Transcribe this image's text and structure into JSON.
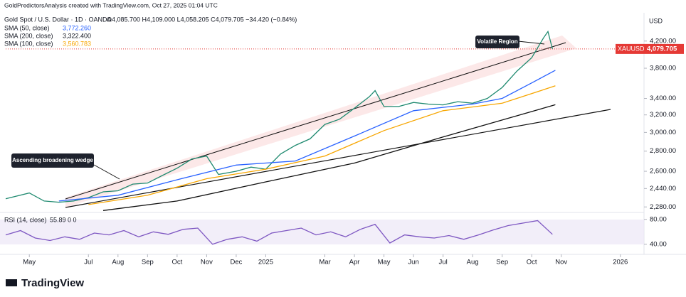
{
  "header": {
    "credit": "GoldPredictorsAnalysis created with TradingView.com, Oct 27, 2025 01:04 UTC",
    "symbol": "Gold Spot / U.S. Dollar · 1D · OANDA",
    "ohlc": "O4,085.700  H4,109.000  L4,058.205  C4,079.705  −34.420 (−0.84%)",
    "legend": [
      {
        "name": "SMA (50, close)",
        "value": "3,772.260"
      },
      {
        "name": "SMA (200, close)",
        "value": "3,322.400"
      },
      {
        "name": "SMA (100, close)",
        "value": "3,560.783"
      }
    ],
    "currency": "USD",
    "ticker": "XAUUSD",
    "logo": "TradingView"
  },
  "chart_data": [
    {
      "type": "line",
      "log_scale": true,
      "grid": false,
      "xlim": [
        -0.8,
        20.8
      ],
      "ylim": [
        2240,
        4400
      ],
      "xticks": [
        {
          "value": 0,
          "label": "May"
        },
        {
          "value": 2,
          "label": "Jul"
        },
        {
          "value": 3,
          "label": "Aug"
        },
        {
          "value": 4,
          "label": "Sep"
        },
        {
          "value": 5,
          "label": "Oct"
        },
        {
          "value": 6,
          "label": "Nov"
        },
        {
          "value": 7,
          "label": "Dec"
        },
        {
          "value": 8,
          "label": "2025"
        },
        {
          "value": 10,
          "label": "Mar"
        },
        {
          "value": 11,
          "label": "Apr"
        },
        {
          "value": 12,
          "label": "May"
        },
        {
          "value": 13,
          "label": "Jun"
        },
        {
          "value": 14,
          "label": "Jul"
        },
        {
          "value": 15,
          "label": "Aug"
        },
        {
          "value": 16,
          "label": "Sep"
        },
        {
          "value": 17,
          "label": "Oct"
        },
        {
          "value": 18,
          "label": "Nov"
        },
        {
          "value": 20,
          "label": "2026"
        }
      ],
      "yticks": [
        {
          "value": 2280,
          "label": "2,280.00"
        },
        {
          "value": 2440,
          "label": "2,440.00"
        },
        {
          "value": 2600,
          "label": "2,600.00"
        },
        {
          "value": 2800,
          "label": "2,800.00"
        },
        {
          "value": 3000,
          "label": "3,000.00"
        },
        {
          "value": 3200,
          "label": "3,200.00"
        },
        {
          "value": 3400,
          "label": "3,400.00"
        },
        {
          "value": 3800,
          "label": "3,800.00"
        },
        {
          "value": 4200,
          "label": "4,200.00"
        }
      ],
      "last_price": 4079.705,
      "last_price_label": "4,079.705",
      "annotations": [
        "Volatile Region",
        "Ascending broadening wedge"
      ],
      "series": [
        {
          "name": "Close",
          "color": "#1f8a70",
          "x": [
            -0.8,
            0,
            0.5,
            1,
            1.5,
            2,
            2.5,
            3,
            3.5,
            4,
            4.5,
            5,
            5.5,
            6,
            6.4,
            7,
            7.5,
            8,
            8.5,
            9,
            9.5,
            10,
            10.5,
            11,
            11.5,
            11.7,
            12,
            12.5,
            13,
            13.5,
            14,
            14.5,
            15,
            15.5,
            16,
            16.5,
            17,
            17.4,
            17.55,
            17.7
          ],
          "values": [
            2350,
            2400,
            2330,
            2320,
            2330,
            2360,
            2410,
            2420,
            2480,
            2490,
            2560,
            2630,
            2720,
            2750,
            2570,
            2600,
            2640,
            2620,
            2770,
            2860,
            2930,
            3090,
            3150,
            3280,
            3420,
            3500,
            3300,
            3300,
            3350,
            3330,
            3320,
            3360,
            3340,
            3400,
            3540,
            3760,
            3950,
            4250,
            4350,
            4080
          ]
        },
        {
          "name": "SMA (50, close)",
          "color": "#2962ff",
          "x": [
            1,
            3,
            5,
            7,
            9,
            11,
            13,
            15,
            16,
            17,
            17.8
          ],
          "values": [
            2330,
            2380,
            2520,
            2660,
            2700,
            2960,
            3250,
            3330,
            3400,
            3600,
            3772
          ]
        },
        {
          "name": "SMA (100, close)",
          "color": "#f7a600",
          "x": [
            2,
            4,
            6,
            8,
            10,
            12,
            14,
            16,
            17.8
          ],
          "values": [
            2300,
            2380,
            2530,
            2620,
            2750,
            3020,
            3250,
            3340,
            3561
          ]
        },
        {
          "name": "SMA (200, close)",
          "color": "#111111",
          "x": [
            2.5,
            5,
            8,
            11,
            14,
            16,
            17.8
          ],
          "values": [
            2250,
            2330,
            2500,
            2680,
            2950,
            3140,
            3322
          ]
        }
      ]
    },
    {
      "type": "line",
      "title": "RSI (14, close)",
      "title_values": "55.89  0  0",
      "xlim": [
        -0.8,
        20.8
      ],
      "ylim": [
        26,
        90
      ],
      "yticks": [
        {
          "value": 80,
          "label": "80.00"
        },
        {
          "value": 40,
          "label": "40.00"
        }
      ],
      "series": [
        {
          "name": "RSI",
          "color": "#7e57c2",
          "x": [
            -0.8,
            -0.3,
            0.2,
            0.7,
            1.2,
            1.7,
            2.2,
            2.7,
            3.2,
            3.7,
            4.2,
            4.7,
            5.2,
            5.7,
            6.2,
            6.7,
            7.2,
            7.7,
            8.2,
            8.7,
            9.2,
            9.7,
            10.2,
            10.7,
            11.2,
            11.7,
            12.2,
            12.7,
            13.2,
            13.7,
            14.2,
            14.7,
            15.2,
            15.7,
            16.2,
            16.7,
            17.2,
            17.7
          ],
          "values": [
            55,
            62,
            50,
            46,
            52,
            48,
            58,
            55,
            62,
            52,
            60,
            56,
            64,
            66,
            40,
            48,
            52,
            45,
            58,
            62,
            66,
            55,
            60,
            52,
            64,
            72,
            42,
            55,
            52,
            50,
            54,
            48,
            55,
            63,
            70,
            74,
            78,
            55.89
          ]
        }
      ]
    }
  ]
}
